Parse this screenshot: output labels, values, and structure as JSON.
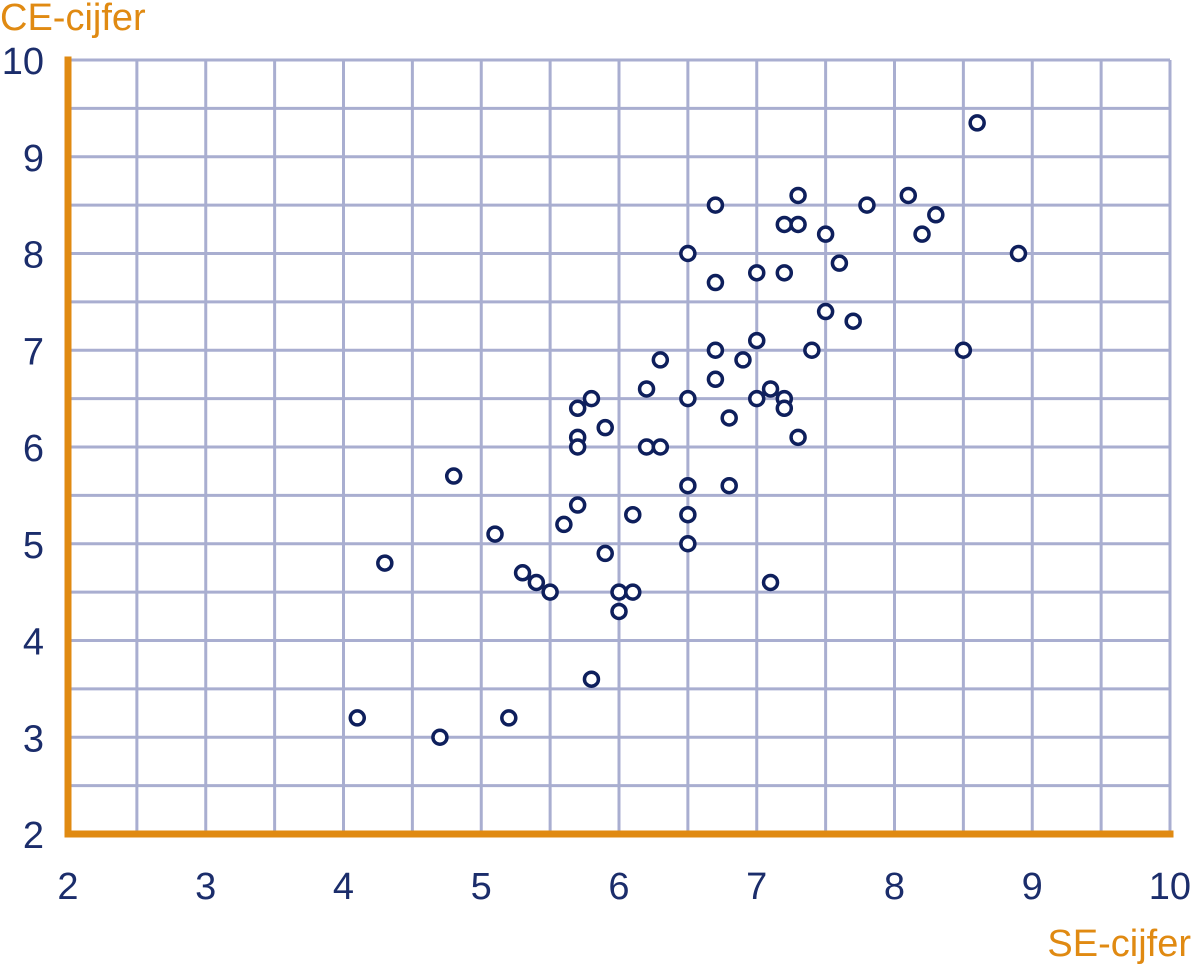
{
  "chart_data": {
    "type": "scatter",
    "xlabel": "SE-cijfer",
    "ylabel": "CE-cijfer",
    "xlim": [
      2,
      10
    ],
    "ylim": [
      2,
      10
    ],
    "x_ticks": [
      "2",
      "3",
      "4",
      "5",
      "6",
      "7",
      "8",
      "9",
      "10"
    ],
    "y_ticks": [
      "2",
      "3",
      "4",
      "5",
      "6",
      "7",
      "8",
      "9",
      "10"
    ],
    "grid": true,
    "legend": "none",
    "colors": {
      "axis": "#e08a12",
      "grid": "#a9aed0",
      "point": "#0e1f5c",
      "tick": "#1b2d6b"
    },
    "points": [
      [
        8.6,
        9.35
      ],
      [
        7.3,
        8.6
      ],
      [
        8.1,
        8.6
      ],
      [
        6.7,
        8.5
      ],
      [
        7.8,
        8.5
      ],
      [
        8.3,
        8.4
      ],
      [
        7.2,
        8.3
      ],
      [
        7.3,
        8.3
      ],
      [
        7.5,
        8.2
      ],
      [
        8.2,
        8.2
      ],
      [
        6.5,
        8.0
      ],
      [
        8.9,
        8.0
      ],
      [
        7.6,
        7.9
      ],
      [
        7.0,
        7.8
      ],
      [
        7.2,
        7.8
      ],
      [
        6.7,
        7.7
      ],
      [
        7.5,
        7.4
      ],
      [
        7.7,
        7.3
      ],
      [
        7.0,
        7.1
      ],
      [
        6.7,
        7.0
      ],
      [
        7.4,
        7.0
      ],
      [
        8.5,
        7.0
      ],
      [
        6.3,
        6.9
      ],
      [
        6.9,
        6.9
      ],
      [
        6.7,
        6.7
      ],
      [
        6.2,
        6.6
      ],
      [
        7.1,
        6.6
      ],
      [
        5.8,
        6.5
      ],
      [
        6.5,
        6.5
      ],
      [
        7.0,
        6.5
      ],
      [
        7.2,
        6.5
      ],
      [
        5.7,
        6.4
      ],
      [
        7.2,
        6.4
      ],
      [
        6.8,
        6.3
      ],
      [
        5.9,
        6.2
      ],
      [
        5.7,
        6.1
      ],
      [
        7.3,
        6.1
      ],
      [
        5.7,
        6.0
      ],
      [
        6.2,
        6.0
      ],
      [
        6.3,
        6.0
      ],
      [
        4.8,
        5.7
      ],
      [
        6.5,
        5.6
      ],
      [
        6.8,
        5.6
      ],
      [
        5.7,
        5.4
      ],
      [
        6.5,
        5.3
      ],
      [
        6.1,
        5.3
      ],
      [
        5.6,
        5.2
      ],
      [
        5.1,
        5.1
      ],
      [
        6.5,
        5.0
      ],
      [
        5.9,
        4.9
      ],
      [
        4.3,
        4.8
      ],
      [
        5.3,
        4.7
      ],
      [
        5.4,
        4.6
      ],
      [
        7.1,
        4.6
      ],
      [
        5.5,
        4.5
      ],
      [
        6.0,
        4.5
      ],
      [
        6.1,
        4.5
      ],
      [
        6.0,
        4.3
      ],
      [
        5.8,
        3.6
      ],
      [
        4.1,
        3.2
      ],
      [
        5.2,
        3.2
      ],
      [
        4.7,
        3.0
      ]
    ]
  }
}
